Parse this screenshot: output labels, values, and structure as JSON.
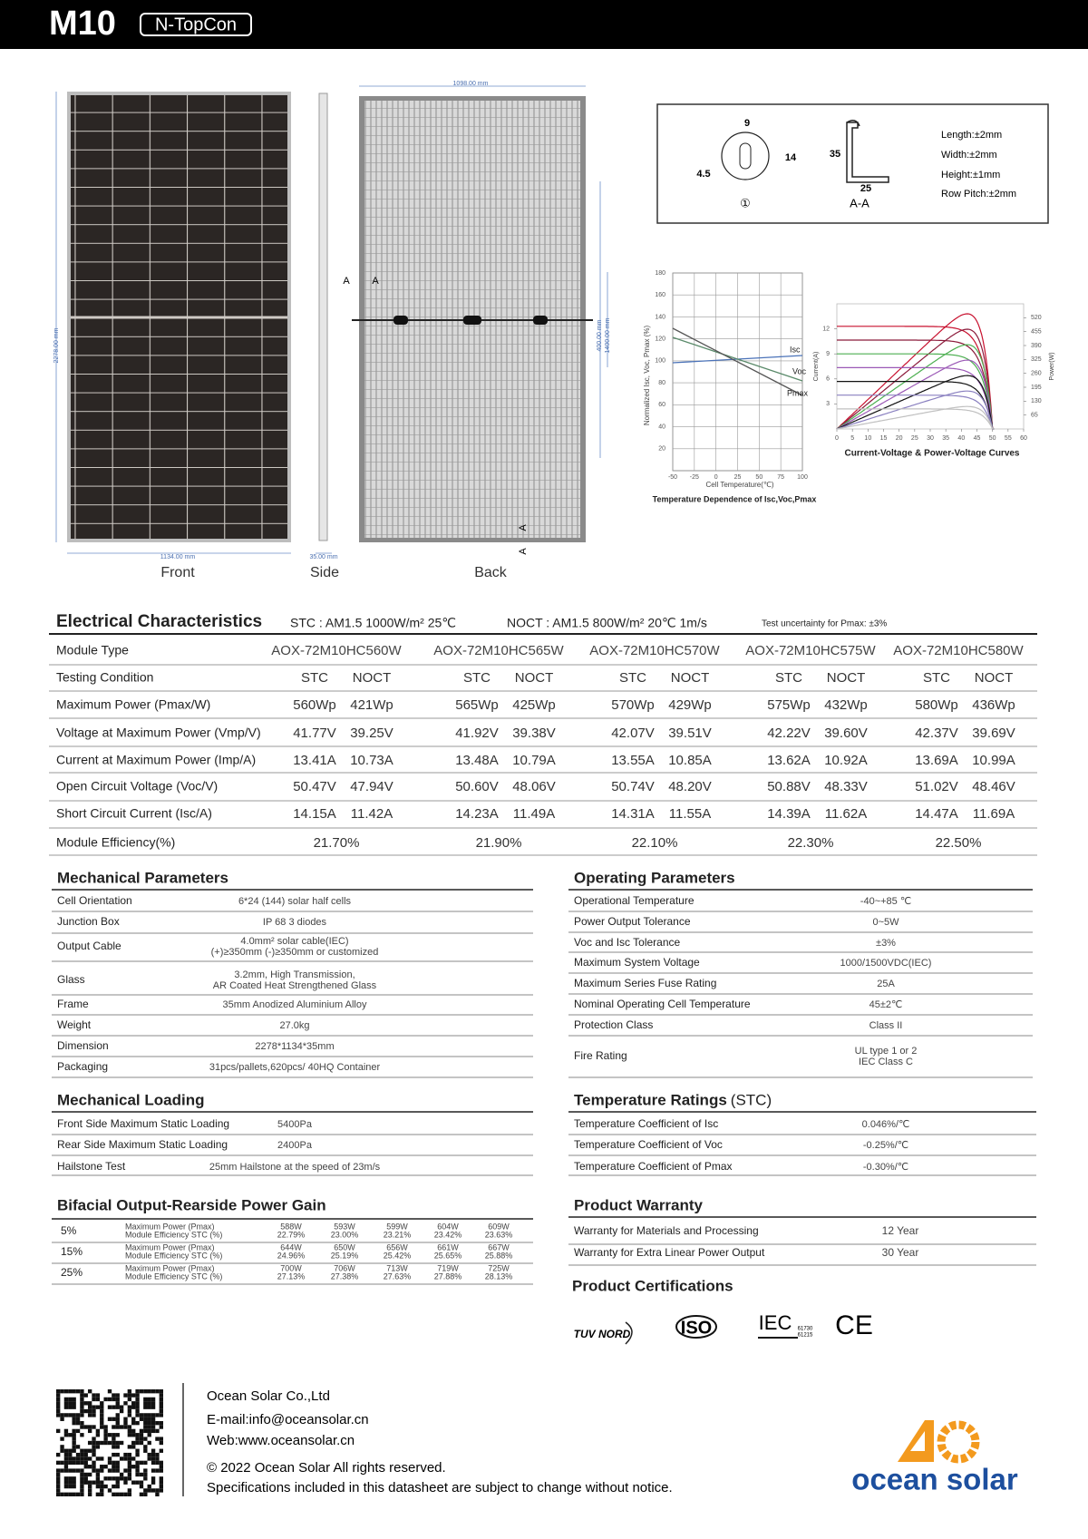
{
  "header": {
    "model": "M10",
    "tag": "N-TopCon"
  },
  "drawings": {
    "front_width": "1134.00 mm",
    "height": "2278.00 mm",
    "side_width": "35.00 mm",
    "back_width": "1098.00 mm",
    "back_heights": [
      "400.00 mm",
      "1400.00 mm"
    ],
    "section_mark": "A",
    "views": [
      "Front",
      "Side",
      "Back"
    ]
  },
  "frame_detail": {
    "hole_dims": [
      "9",
      "14",
      "4.5"
    ],
    "profile_dims": [
      "35",
      "25"
    ],
    "hole_label": "①",
    "section_label": "A-A",
    "tolerances": [
      "Length:±2mm",
      "Width:±2mm",
      "Height:±1mm",
      "Row Pitch:±2mm"
    ]
  },
  "charts": {
    "temperature": {
      "xlim": [
        -50,
        100
      ],
      "ylim": [
        0,
        180
      ],
      "xticks": [
        -50,
        -25,
        0,
        25,
        50,
        75,
        100
      ],
      "yticks": [
        20,
        40,
        60,
        80,
        100,
        120,
        140,
        160,
        180
      ],
      "xlabel": "Cell Temperature(℃)",
      "ylabel": "Normalized Isc, Voc, Pmax (%)",
      "series": [
        "Isc",
        "Voc",
        "Pmax"
      ],
      "caption": "Temperature Dependence of Isc,Voc,Pmax"
    },
    "iv": {
      "xlim": [
        0,
        60
      ],
      "ylim": [
        0,
        15
      ],
      "y2lim": [
        0,
        585
      ],
      "xticks": [
        0,
        5,
        10,
        15,
        20,
        25,
        30,
        35,
        40,
        45,
        50,
        55,
        60
      ],
      "yticks": [
        3,
        6,
        9,
        12
      ],
      "y2ticks": [
        65,
        130,
        195,
        260,
        325,
        390,
        455,
        520
      ],
      "ylabel": "Current(A)",
      "y2label": "Power(W)",
      "caption": "Current-Voltage & Power-Voltage Curves"
    }
  },
  "electrical": {
    "title": "Electrical Characteristics",
    "stc": "STC : AM1.5   1000W/m²  25℃",
    "noct": "NOCT : AM1.5   800W/m²  20℃   1m/s",
    "note": "Test uncertainty for Pmax: ±3%",
    "module_type_label": "Module Type",
    "models": [
      "AOX-72M10HC560W",
      "AOX-72M10HC565W",
      "AOX-72M10HC570W",
      "AOX-72M10HC575W",
      "AOX-72M10HC580W"
    ],
    "rows": [
      {
        "label": "Testing Condition",
        "values": [
          [
            "STC",
            "NOCT"
          ],
          [
            "STC",
            "NOCT"
          ],
          [
            "STC",
            "NOCT"
          ],
          [
            "STC",
            "NOCT"
          ],
          [
            "STC",
            "NOCT"
          ]
        ]
      },
      {
        "label": "Maximum Power (Pmax/W)",
        "values": [
          [
            "560Wp",
            "421Wp"
          ],
          [
            "565Wp",
            "425Wp"
          ],
          [
            "570Wp",
            "429Wp"
          ],
          [
            "575Wp",
            "432Wp"
          ],
          [
            "580Wp",
            "436Wp"
          ]
        ]
      },
      {
        "label": "Voltage at Maximum Power (Vmp/V)",
        "values": [
          [
            "41.77V",
            "39.25V"
          ],
          [
            "41.92V",
            "39.38V"
          ],
          [
            "42.07V",
            "39.51V"
          ],
          [
            "42.22V",
            "39.60V"
          ],
          [
            "42.37V",
            "39.69V"
          ]
        ]
      },
      {
        "label": "Current at Maximum Power (Imp/A)",
        "values": [
          [
            "13.41A",
            "10.73A"
          ],
          [
            "13.48A",
            "10.79A"
          ],
          [
            "13.55A",
            "10.85A"
          ],
          [
            "13.62A",
            "10.92A"
          ],
          [
            "13.69A",
            "10.99A"
          ]
        ]
      },
      {
        "label": "Open Circuit Voltage (Voc/V)",
        "values": [
          [
            "50.47V",
            "47.94V"
          ],
          [
            "50.60V",
            "48.06V"
          ],
          [
            "50.74V",
            "48.20V"
          ],
          [
            "50.88V",
            "48.33V"
          ],
          [
            "51.02V",
            "48.46V"
          ]
        ]
      },
      {
        "label": "Short Circuit Current (Isc/A)",
        "values": [
          [
            "14.15A",
            "11.42A"
          ],
          [
            "14.23A",
            "11.49A"
          ],
          [
            "14.31A",
            "11.55A"
          ],
          [
            "14.39A",
            "11.62A"
          ],
          [
            "14.47A",
            "11.69A"
          ]
        ]
      }
    ],
    "efficiency": {
      "label": "Module Efficiency(%)",
      "values": [
        "21.70%",
        "21.90%",
        "22.10%",
        "22.30%",
        "22.50%"
      ]
    }
  },
  "mechanical": {
    "title": "Mechanical Parameters",
    "rows": [
      {
        "label": "Cell Orientation",
        "value": [
          "6*24 (144) solar half cells"
        ]
      },
      {
        "label": "Junction Box",
        "value": [
          "IP 68  3 diodes"
        ]
      },
      {
        "label": "Output Cable",
        "value": [
          "4.0mm² solar cable(IEC)",
          "(+)≥350mm (-)≥350mm or customized"
        ]
      },
      {
        "label": "Glass",
        "value": [
          "3.2mm, High Transmission,",
          "AR Coated Heat Strengthened Glass"
        ]
      },
      {
        "label": "Frame",
        "value": [
          "35mm Anodized Aluminium Alloy"
        ]
      },
      {
        "label": "Weight",
        "value": [
          "27.0kg"
        ]
      },
      {
        "label": "Dimension",
        "value": [
          "2278*1134*35mm"
        ]
      },
      {
        "label": "Packaging",
        "value": [
          "31pcs/pallets,620pcs/ 40HQ Container"
        ]
      }
    ]
  },
  "operating": {
    "title": "Operating Parameters",
    "rows": [
      {
        "label": "Operational Temperature",
        "value": [
          "-40~+85 ℃"
        ]
      },
      {
        "label": "Power Output Tolerance",
        "value": [
          "0~5W"
        ]
      },
      {
        "label": "Voc and Isc Tolerance",
        "value": [
          "±3%"
        ]
      },
      {
        "label": "Maximum System Voltage",
        "value": [
          "1000/1500VDC(IEC)"
        ]
      },
      {
        "label": "Maximum Series Fuse Rating",
        "value": [
          "25A"
        ]
      },
      {
        "label": "Nominal Operating Cell Temperature",
        "value": [
          "45±2℃"
        ]
      },
      {
        "label": "Protection Class",
        "value": [
          "Class II"
        ]
      },
      {
        "label": "Fire Rating",
        "value": [
          "UL type 1 or 2",
          "IEC Class C"
        ]
      }
    ]
  },
  "loading": {
    "title": "Mechanical Loading",
    "rows": [
      {
        "label": "Front Side Maximum Static Loading",
        "value": [
          "5400Pa"
        ]
      },
      {
        "label": "Rear Side Maximum Static Loading",
        "value": [
          "2400Pa"
        ]
      },
      {
        "label": "Hailstone Test",
        "value": [
          "25mm Hailstone at the speed of 23m/s"
        ]
      }
    ]
  },
  "temperature_ratings": {
    "title": "Temperature Ratings",
    "suffix": "(STC)",
    "rows": [
      {
        "label": "Temperature Coefficient of  Isc",
        "value": [
          "0.046%/℃"
        ]
      },
      {
        "label": "Temperature Coefficient of  Voc",
        "value": [
          "-0.25%/℃"
        ]
      },
      {
        "label": "Temperature Coefficient of  Pmax",
        "value": [
          "-0.30%/℃"
        ]
      }
    ]
  },
  "bifacial": {
    "title": "Bifacial Output-Rearside Power Gain",
    "row_labels": [
      "Maximum Power (Pmax)",
      "Module Efficiency STC (%)"
    ],
    "rows": [
      {
        "gain": "5%",
        "power": [
          "588W",
          "593W",
          "599W",
          "604W",
          "609W"
        ],
        "efficiency": [
          "22.79%",
          "23.00%",
          "23.21%",
          "23.42%",
          "23.63%"
        ]
      },
      {
        "gain": "15%",
        "power": [
          "644W",
          "650W",
          "656W",
          "661W",
          "667W"
        ],
        "efficiency": [
          "24.96%",
          "25.19%",
          "25.42%",
          "25.65%",
          "25.88%"
        ]
      },
      {
        "gain": "25%",
        "power": [
          "700W",
          "706W",
          "713W",
          "719W",
          "725W"
        ],
        "efficiency": [
          "27.13%",
          "27.38%",
          "27.63%",
          "27.88%",
          "28.13%"
        ]
      }
    ]
  },
  "warranty": {
    "title": "Product Warranty",
    "rows": [
      {
        "label": "Warranty for Materials and Processing",
        "value": [
          "12 Year"
        ]
      },
      {
        "label": "Warranty for Extra Linear Power Output",
        "value": [
          "30 Year"
        ]
      }
    ]
  },
  "certifications": {
    "title": "Product Certifications",
    "tuv": "TUV NORD",
    "iso": "ISO",
    "iec": "IEC",
    "iec_codes": [
      "61730",
      "61215"
    ],
    "ce": "CE"
  },
  "footer": {
    "company": "Ocean Solar Co.,Ltd",
    "email": "E-mail:info@oceansolar.cn",
    "web": "Web:www.oceansolar.cn",
    "copyright": "© 2022 Ocean Solar All rights reserved.",
    "disclaimer": "Specifications included in this datasheet are subject to change without notice.",
    "brand": "ocean solar"
  }
}
